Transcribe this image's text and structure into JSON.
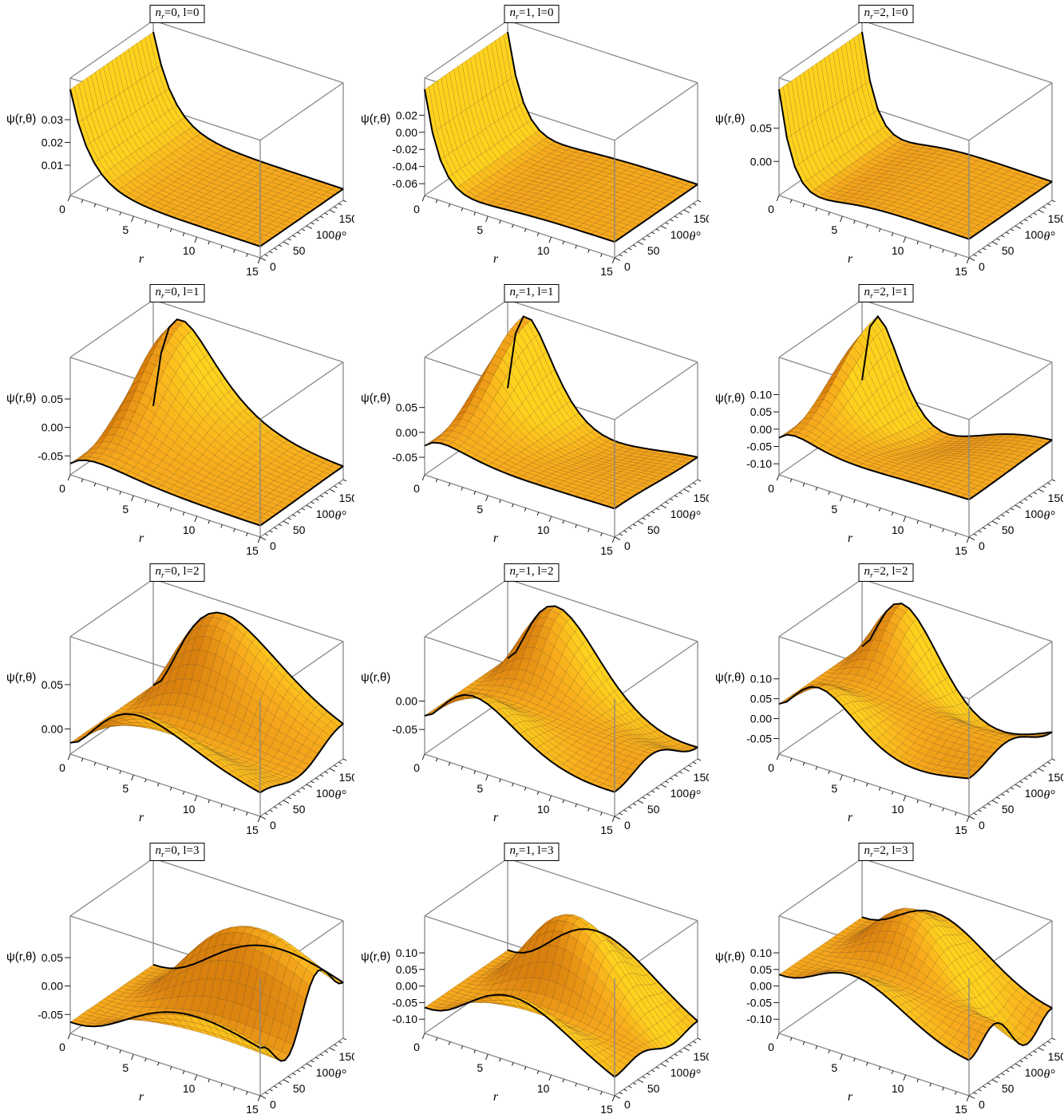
{
  "chart_data": [
    {
      "type": "surface3d",
      "n_r": "0",
      "l": "0",
      "zticks": [
        "0.01",
        "0.02",
        "0.03"
      ],
      "zrange": [
        0,
        0.035
      ],
      "peak": {
        "r": 0.6,
        "theta": 0,
        "value": 0.035
      }
    },
    {
      "type": "surface3d",
      "n_r": "1",
      "l": "0",
      "zticks": [
        "-0.06",
        "-0.04",
        "-0.02",
        "0.00",
        "0.02"
      ],
      "zrange": [
        -0.065,
        0.028
      ],
      "peak": {
        "r": 0.5,
        "theta": 0,
        "value": 0.028
      }
    },
    {
      "type": "surface3d",
      "n_r": "2",
      "l": "0",
      "zticks": [
        "0.00",
        "0.05"
      ],
      "zrange": [
        -0.04,
        0.08
      ],
      "peak": {
        "r": 0.4,
        "theta": 0,
        "value": 0.08
      }
    },
    {
      "type": "surface3d",
      "n_r": "0",
      "l": "1",
      "zticks": [
        "-0.05",
        "0.00",
        "0.05"
      ],
      "zrange": [
        -0.07,
        0.07
      ],
      "peak": {
        "r": 2,
        "theta": 180,
        "value": 0.065
      }
    },
    {
      "type": "surface3d",
      "n_r": "1",
      "l": "1",
      "zticks": [
        "-0.05",
        "0.00",
        "0.05"
      ],
      "zrange": [
        -0.07,
        0.09
      ],
      "peak": {
        "r": 1,
        "theta": 180,
        "value": 0.09
      }
    },
    {
      "type": "surface3d",
      "n_r": "2",
      "l": "1",
      "zticks": [
        "-0.10",
        "-0.05",
        "0.00",
        "0.05",
        "0.10"
      ],
      "zrange": [
        -0.11,
        0.12
      ],
      "peak": {
        "r": 0.5,
        "theta": 180,
        "value": 0.12
      }
    },
    {
      "type": "surface3d",
      "n_r": "0",
      "l": "2",
      "zticks": [
        "0.00",
        "0.05"
      ],
      "zrange": [
        -0.02,
        0.07
      ],
      "peak": {
        "r": 3,
        "theta": 180,
        "value": 0.07
      }
    },
    {
      "type": "surface3d",
      "n_r": "1",
      "l": "2",
      "zticks": [
        "-0.05",
        "0.00"
      ],
      "zrange": [
        -0.08,
        0.06
      ],
      "peak": {
        "r": 2,
        "theta": 180,
        "value": 0.06
      }
    },
    {
      "type": "surface3d",
      "n_r": "2",
      "l": "2",
      "zticks": [
        "-0.05",
        "0.00",
        "0.05",
        "0.10"
      ],
      "zrange": [
        -0.07,
        0.13
      ],
      "peak": {
        "r": 1,
        "theta": 180,
        "value": 0.13
      }
    },
    {
      "type": "surface3d",
      "n_r": "0",
      "l": "3",
      "zticks": [
        "-0.05",
        "0.00",
        "0.05"
      ],
      "zrange": [
        -0.07,
        0.07
      ],
      "peak": {
        "r": 3,
        "theta": 180,
        "value": 0.07
      }
    },
    {
      "type": "surface3d",
      "n_r": "1",
      "l": "3",
      "zticks": [
        "-0.10",
        "-0.05",
        "0.00",
        "0.05",
        "0.10"
      ],
      "zrange": [
        -0.12,
        0.12
      ],
      "peak": {
        "r": 2,
        "theta": 180,
        "value": 0.12
      }
    },
    {
      "type": "surface3d",
      "n_r": "2",
      "l": "3",
      "zticks": [
        "-0.10",
        "-0.05",
        "0.00",
        "0.05",
        "0.10"
      ],
      "zrange": [
        -0.12,
        0.12
      ],
      "peak": {
        "r": 1,
        "theta": 180,
        "value": 0.12
      }
    }
  ],
  "axes": {
    "x_label": "r",
    "x_ticks": [
      "0",
      "5",
      "10",
      "15"
    ],
    "x_range": [
      0,
      15
    ],
    "y_label": "θ°",
    "y_ticks": [
      "0",
      "50",
      "100",
      "150"
    ],
    "y_range": [
      0,
      180
    ],
    "z_label": "ψ(r,θ)",
    "title_template": {
      "n_prefix": "n",
      "n_sub": "r",
      "l_prefix": "l="
    }
  },
  "colors": {
    "surface_light": "#ffd21e",
    "surface_mid": "#f7a91c",
    "surface_dark": "#d9800e",
    "mesh": "#5a3a10",
    "box": "#888888",
    "edge": "#000000"
  }
}
